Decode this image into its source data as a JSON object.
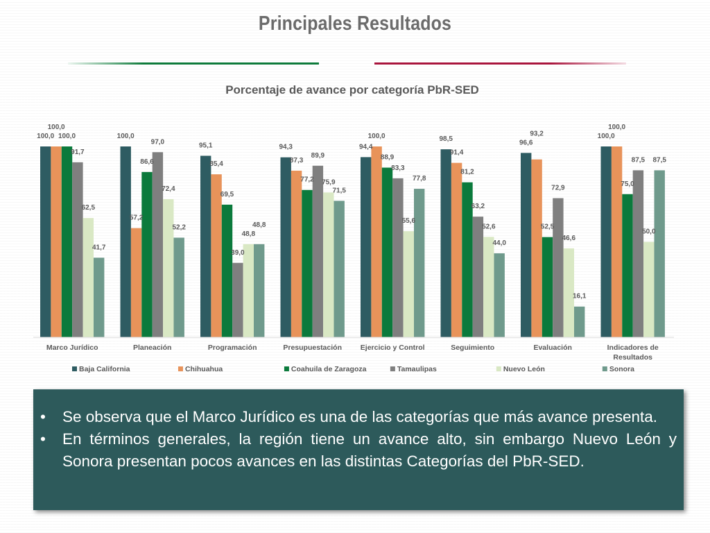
{
  "slide": {
    "title": "Principales Resultados"
  },
  "colors": {
    "rule_left": "#0d7a3a",
    "rule_right": "#a8143c",
    "note_background": "#2d5a5b"
  },
  "chart_data": {
    "type": "bar",
    "title": "Porcentaje de avance por categoría PbR-SED",
    "categories": [
      "Marco Jurídico",
      "Planeación",
      "Programación",
      "Presupuestación",
      "Ejercicio y Control",
      "Seguimiento",
      "Evaluación",
      "Indicadores de Resultados"
    ],
    "series": [
      {
        "name": "Baja California",
        "color": "#2e5c62",
        "values": [
          100.0,
          100.0,
          95.1,
          94.3,
          94.4,
          98.5,
          96.6,
          100.0
        ],
        "labels": [
          "100,0",
          "100,0",
          "95,1",
          "94,3",
          "94,4",
          "98,5",
          "96,6",
          "100,0"
        ]
      },
      {
        "name": "Chihuahua",
        "color": "#e8935a",
        "values": [
          100.0,
          57.2,
          85.4,
          87.3,
          100.0,
          91.4,
          93.2,
          100.0
        ],
        "labels": [
          "100,0",
          "57,2",
          "85,4",
          "87,3",
          "100,0",
          "91,4",
          "93,2",
          "100,0"
        ]
      },
      {
        "name": "Coahuila de Zaragoza",
        "color": "#0b7a3c",
        "values": [
          100.0,
          86.6,
          69.5,
          77.2,
          88.9,
          81.2,
          52.5,
          75.0
        ],
        "labels": [
          "100,0",
          "86,6",
          "69,5",
          "77,2",
          "88,9",
          "81,2",
          "52,5",
          "75,0"
        ]
      },
      {
        "name": "Tamaulipas",
        "color": "#7f7f7f",
        "values": [
          91.7,
          97.0,
          39.0,
          89.9,
          83.3,
          63.2,
          72.9,
          87.5
        ],
        "labels": [
          "91,7",
          "97,0",
          "39,0",
          "89,9",
          "83,3",
          "63,2",
          "72,9",
          "87,5"
        ]
      },
      {
        "name": "Nuevo León",
        "color": "#d9e8c4",
        "values": [
          62.5,
          72.4,
          48.8,
          75.9,
          55.6,
          52.6,
          46.6,
          50.0
        ],
        "labels": [
          "62,5",
          "72,4",
          "48,8",
          "75,9",
          "55,6",
          "52,6",
          "46,6",
          "50,0"
        ]
      },
      {
        "name": "Sonora",
        "color": "#6f9a8c",
        "values": [
          41.7,
          52.2,
          48.8,
          71.5,
          77.8,
          44.0,
          16.1,
          87.5
        ],
        "labels": [
          "41,7",
          "52,2",
          "48,8",
          "71,5",
          "77,8",
          "44,0",
          "16,1",
          "87,5"
        ]
      }
    ],
    "ylim": [
      0,
      100
    ],
    "grid": false,
    "legend_position": "bottom"
  },
  "notes": [
    {
      "bullet": "•",
      "text": "Se observa que el Marco Jurídico es una de las categorías que más avance presenta."
    },
    {
      "bullet": "•",
      "text": "En términos generales, la región tiene un avance alto, sin embargo Nuevo León y Sonora presentan pocos avances en las distintas Categorías del PbR-SED."
    }
  ]
}
